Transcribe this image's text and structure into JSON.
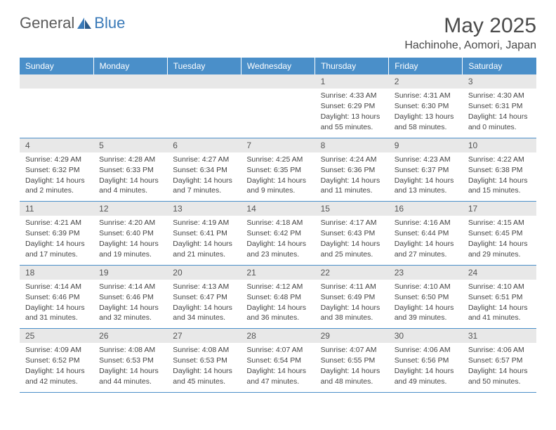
{
  "logo": {
    "general": "General",
    "blue": "Blue"
  },
  "title": "May 2025",
  "subtitle": "Hachinohe, Aomori, Japan",
  "colors": {
    "header_bg": "#4a8fc9",
    "header_text": "#ffffff",
    "daynum_bg": "#e8e8e8",
    "border": "#4a8fc9",
    "logo_gray": "#5a5a5a",
    "logo_blue": "#3a7ab8"
  },
  "weekdays": [
    "Sunday",
    "Monday",
    "Tuesday",
    "Wednesday",
    "Thursday",
    "Friday",
    "Saturday"
  ],
  "weeks": [
    [
      null,
      null,
      null,
      null,
      {
        "n": "1",
        "sr": "4:33 AM",
        "ss": "6:29 PM",
        "dl": "13 hours and 55 minutes."
      },
      {
        "n": "2",
        "sr": "4:31 AM",
        "ss": "6:30 PM",
        "dl": "13 hours and 58 minutes."
      },
      {
        "n": "3",
        "sr": "4:30 AM",
        "ss": "6:31 PM",
        "dl": "14 hours and 0 minutes."
      }
    ],
    [
      {
        "n": "4",
        "sr": "4:29 AM",
        "ss": "6:32 PM",
        "dl": "14 hours and 2 minutes."
      },
      {
        "n": "5",
        "sr": "4:28 AM",
        "ss": "6:33 PM",
        "dl": "14 hours and 4 minutes."
      },
      {
        "n": "6",
        "sr": "4:27 AM",
        "ss": "6:34 PM",
        "dl": "14 hours and 7 minutes."
      },
      {
        "n": "7",
        "sr": "4:25 AM",
        "ss": "6:35 PM",
        "dl": "14 hours and 9 minutes."
      },
      {
        "n": "8",
        "sr": "4:24 AM",
        "ss": "6:36 PM",
        "dl": "14 hours and 11 minutes."
      },
      {
        "n": "9",
        "sr": "4:23 AM",
        "ss": "6:37 PM",
        "dl": "14 hours and 13 minutes."
      },
      {
        "n": "10",
        "sr": "4:22 AM",
        "ss": "6:38 PM",
        "dl": "14 hours and 15 minutes."
      }
    ],
    [
      {
        "n": "11",
        "sr": "4:21 AM",
        "ss": "6:39 PM",
        "dl": "14 hours and 17 minutes."
      },
      {
        "n": "12",
        "sr": "4:20 AM",
        "ss": "6:40 PM",
        "dl": "14 hours and 19 minutes."
      },
      {
        "n": "13",
        "sr": "4:19 AM",
        "ss": "6:41 PM",
        "dl": "14 hours and 21 minutes."
      },
      {
        "n": "14",
        "sr": "4:18 AM",
        "ss": "6:42 PM",
        "dl": "14 hours and 23 minutes."
      },
      {
        "n": "15",
        "sr": "4:17 AM",
        "ss": "6:43 PM",
        "dl": "14 hours and 25 minutes."
      },
      {
        "n": "16",
        "sr": "4:16 AM",
        "ss": "6:44 PM",
        "dl": "14 hours and 27 minutes."
      },
      {
        "n": "17",
        "sr": "4:15 AM",
        "ss": "6:45 PM",
        "dl": "14 hours and 29 minutes."
      }
    ],
    [
      {
        "n": "18",
        "sr": "4:14 AM",
        "ss": "6:46 PM",
        "dl": "14 hours and 31 minutes."
      },
      {
        "n": "19",
        "sr": "4:14 AM",
        "ss": "6:46 PM",
        "dl": "14 hours and 32 minutes."
      },
      {
        "n": "20",
        "sr": "4:13 AM",
        "ss": "6:47 PM",
        "dl": "14 hours and 34 minutes."
      },
      {
        "n": "21",
        "sr": "4:12 AM",
        "ss": "6:48 PM",
        "dl": "14 hours and 36 minutes."
      },
      {
        "n": "22",
        "sr": "4:11 AM",
        "ss": "6:49 PM",
        "dl": "14 hours and 38 minutes."
      },
      {
        "n": "23",
        "sr": "4:10 AM",
        "ss": "6:50 PM",
        "dl": "14 hours and 39 minutes."
      },
      {
        "n": "24",
        "sr": "4:10 AM",
        "ss": "6:51 PM",
        "dl": "14 hours and 41 minutes."
      }
    ],
    [
      {
        "n": "25",
        "sr": "4:09 AM",
        "ss": "6:52 PM",
        "dl": "14 hours and 42 minutes."
      },
      {
        "n": "26",
        "sr": "4:08 AM",
        "ss": "6:53 PM",
        "dl": "14 hours and 44 minutes."
      },
      {
        "n": "27",
        "sr": "4:08 AM",
        "ss": "6:53 PM",
        "dl": "14 hours and 45 minutes."
      },
      {
        "n": "28",
        "sr": "4:07 AM",
        "ss": "6:54 PM",
        "dl": "14 hours and 47 minutes."
      },
      {
        "n": "29",
        "sr": "4:07 AM",
        "ss": "6:55 PM",
        "dl": "14 hours and 48 minutes."
      },
      {
        "n": "30",
        "sr": "4:06 AM",
        "ss": "6:56 PM",
        "dl": "14 hours and 49 minutes."
      },
      {
        "n": "31",
        "sr": "4:06 AM",
        "ss": "6:57 PM",
        "dl": "14 hours and 50 minutes."
      }
    ]
  ],
  "labels": {
    "sunrise": "Sunrise: ",
    "sunset": "Sunset: ",
    "daylight": "Daylight: "
  }
}
